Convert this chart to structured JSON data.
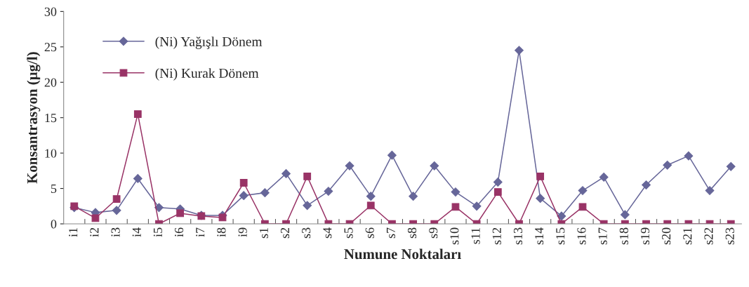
{
  "chart_data": {
    "type": "line",
    "xlabel": "Numune Noktaları",
    "ylabel": "Konsantrasyon (µg/l)",
    "categories": [
      "i1",
      "i2",
      "i3",
      "i4",
      "i5",
      "i6",
      "i7",
      "i8",
      "i9",
      "s1",
      "s2",
      "s3",
      "s4",
      "s5",
      "s6",
      "s7",
      "s8",
      "s9",
      "s10",
      "s11",
      "s12",
      "s13",
      "s14",
      "s15",
      "s16",
      "s17",
      "s18",
      "s19",
      "s20",
      "s21",
      "s22",
      "s23"
    ],
    "series": [
      {
        "name": "(Ni) Yağışlı Dönem",
        "color": "#666699",
        "marker": "diamond",
        "values": [
          2.3,
          1.6,
          1.9,
          6.4,
          2.3,
          2.1,
          1.2,
          1.2,
          4.0,
          4.4,
          7.1,
          2.6,
          4.6,
          8.2,
          3.9,
          9.7,
          3.9,
          8.2,
          4.5,
          2.5,
          5.9,
          24.5,
          3.6,
          1.1,
          4.7,
          6.6,
          1.3,
          5.5,
          8.3,
          9.6,
          4.7,
          8.1
        ]
      },
      {
        "name": "(Ni) Kurak Dönem",
        "color": "#993366",
        "marker": "square",
        "values": [
          2.5,
          0.8,
          3.5,
          15.5,
          0,
          1.5,
          1.1,
          0.9,
          5.8,
          0,
          0,
          6.7,
          0,
          0,
          2.6,
          0,
          0,
          0,
          2.4,
          0,
          4.5,
          0,
          6.7,
          0,
          2.4,
          0,
          0,
          0,
          0,
          0,
          0,
          0
        ]
      }
    ],
    "ylim": [
      0,
      30
    ],
    "yticks": [
      0,
      5,
      10,
      15,
      20,
      25,
      30
    ],
    "grid": false,
    "legend": "top left"
  }
}
